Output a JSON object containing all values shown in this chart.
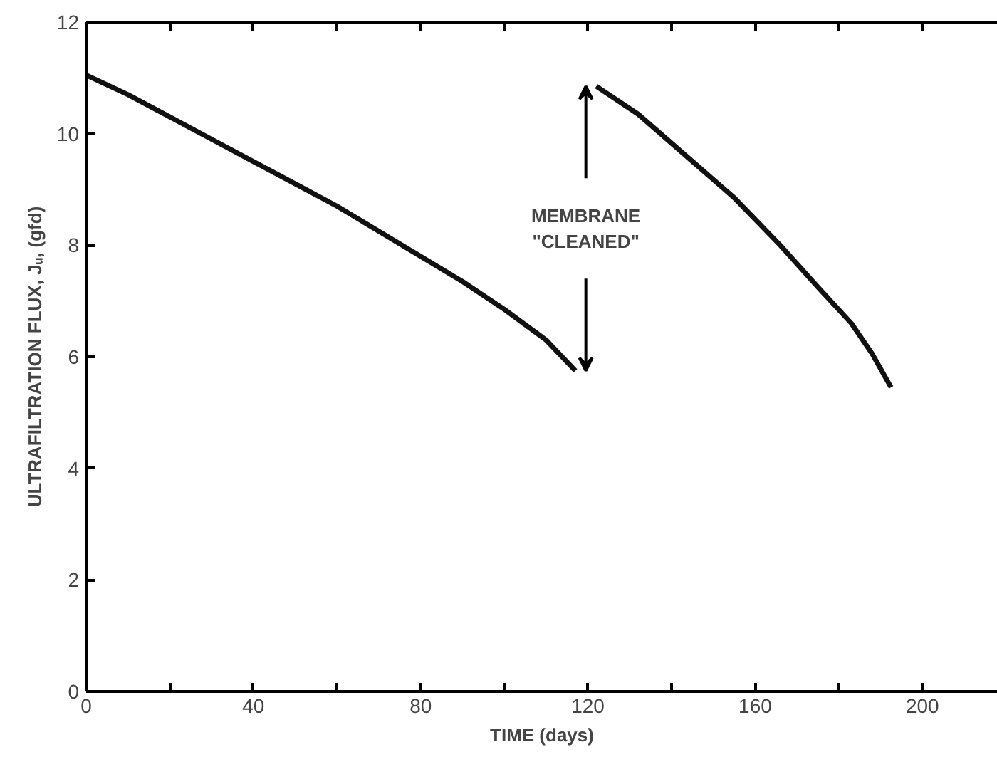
{
  "chart_data": {
    "type": "line",
    "xlabel": "TIME (days)",
    "ylabel": "ULTRAFILTRATION FLUX, Jᵤ, (gfd)",
    "series": [
      {
        "color": "#111111",
        "x": [
          0,
          10,
          20,
          30,
          40,
          50,
          60,
          70,
          80,
          90,
          100,
          110,
          117
        ],
        "values": [
          11.05,
          10.7,
          10.3,
          9.9,
          9.5,
          9.1,
          8.7,
          8.25,
          7.8,
          7.35,
          6.85,
          6.3,
          5.75
        ]
      },
      {
        "color": "#111111",
        "x": [
          122,
          132,
          143.5,
          155,
          166,
          175,
          183,
          188,
          192.5
        ],
        "values": [
          10.85,
          10.35,
          9.6,
          8.85,
          8.0,
          7.25,
          6.6,
          6.05,
          5.45
        ]
      }
    ],
    "xlim": [
      0,
      218
    ],
    "ylim": [
      0,
      12
    ],
    "xticks": [
      0,
      {
        "value": 20,
        "label": null
      },
      40,
      {
        "value": 60,
        "label": null
      },
      80,
      {
        "value": 100,
        "label": null
      },
      120,
      {
        "value": 140,
        "label": null
      },
      160,
      {
        "value": 180,
        "label": null
      },
      200
    ],
    "yticks": [
      0,
      2,
      4,
      6,
      8,
      10,
      12
    ],
    "annotations": [
      "MEMBRANE\n\"CLEANED\""
    ],
    "grid": false,
    "marker": "none",
    "line_style": "solid"
  }
}
